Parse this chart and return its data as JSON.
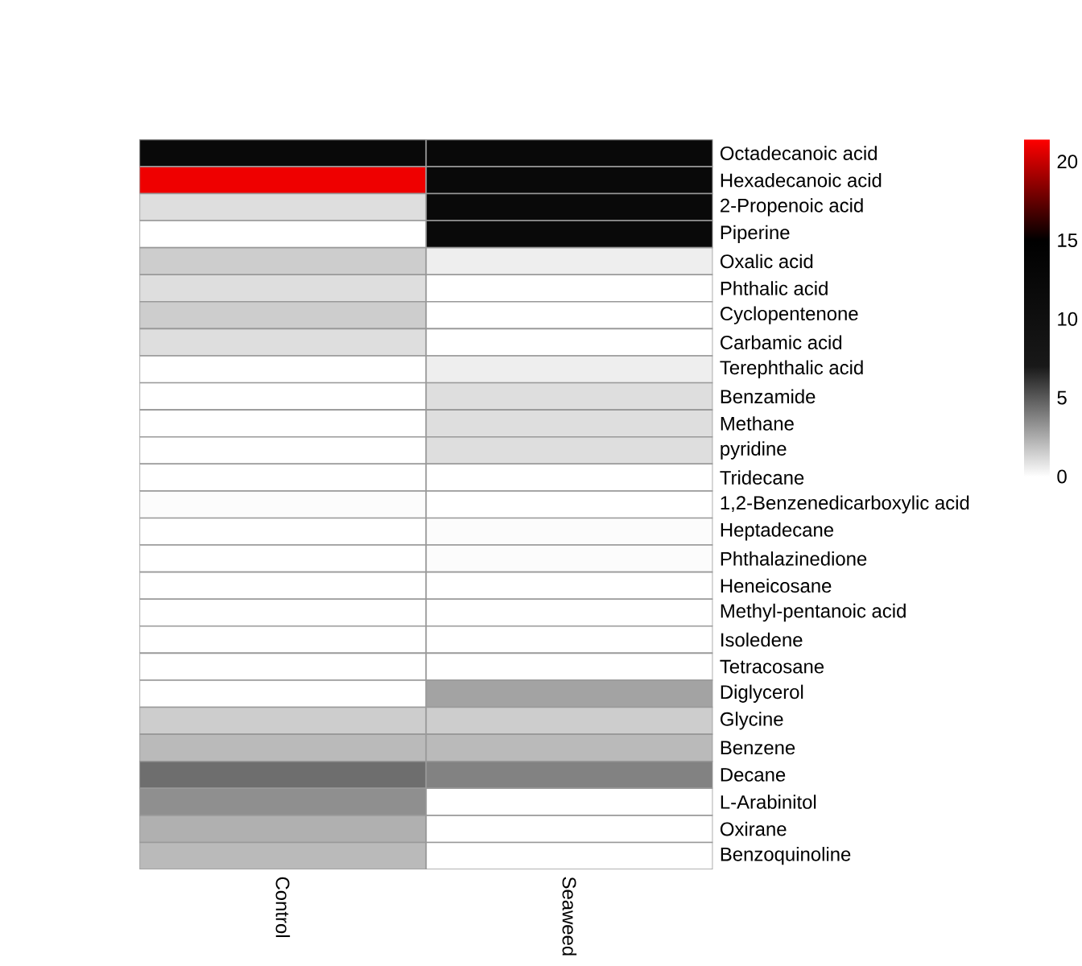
{
  "chart_data": {
    "type": "heatmap",
    "categories": [
      "Control",
      "Seaweed"
    ],
    "y_categories": [
      "Octadecanoic acid",
      "Hexadecanoic acid",
      "2-Propenoic acid",
      "Piperine",
      "Oxalic acid",
      "Phthalic acid",
      "Cyclopentenone",
      "Carbamic acid",
      "Terephthalic acid",
      "Benzamide",
      "Methane",
      "pyridine",
      "Tridecane",
      "1,2-Benzenedicarboxylic acid",
      "Heptadecane",
      "Phthalazinedione",
      "Heneicosane",
      "Methyl-pentanoic acid",
      "Isoledene",
      "Tetracosane",
      "Diglycerol",
      "Glycine",
      "Benzene",
      "Decane",
      "L-Arabinitol",
      "Oxirane",
      "Benzoquinoline"
    ],
    "cells": [
      [
        12,
        12
      ],
      [
        21,
        12
      ],
      [
        1,
        12
      ],
      [
        0,
        12
      ],
      [
        1.5,
        0.5
      ],
      [
        1,
        0
      ],
      [
        1.5,
        0
      ],
      [
        1,
        0
      ],
      [
        0,
        0.5
      ],
      [
        0,
        1
      ],
      [
        0,
        1
      ],
      [
        0,
        1
      ],
      [
        0,
        0
      ],
      [
        0.1,
        0
      ],
      [
        0,
        0.1
      ],
      [
        0,
        0.1
      ],
      [
        0,
        0
      ],
      [
        0,
        0
      ],
      [
        0,
        0
      ],
      [
        0,
        0
      ],
      [
        0,
        2.8
      ],
      [
        1.5,
        1.5
      ],
      [
        2.1,
        2.1
      ],
      [
        4.4,
        3.8
      ],
      [
        3.4,
        0
      ],
      [
        2.4,
        0
      ],
      [
        2.1,
        0
      ]
    ],
    "clim": [
      0,
      21.4
    ],
    "cticks": [
      0,
      5,
      10,
      15,
      20
    ]
  }
}
